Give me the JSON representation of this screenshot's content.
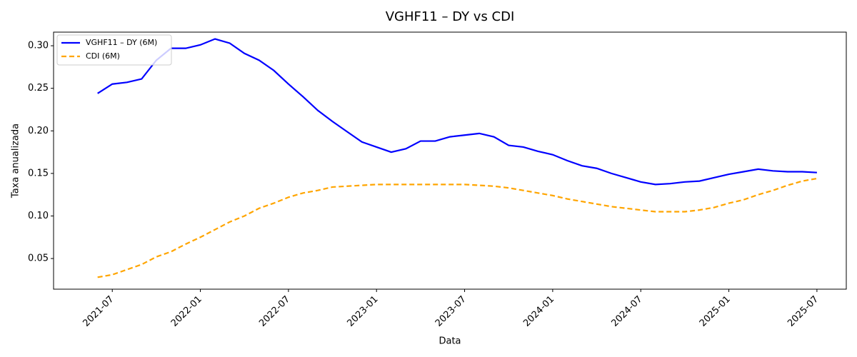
{
  "chart_data": {
    "type": "line",
    "title": "VGHF11 – DY vs CDI",
    "x_label": "Data",
    "y_label": "Taxa anualizada",
    "x": [
      "2021-06",
      "2021-07",
      "2021-08",
      "2021-09",
      "2021-10",
      "2021-11",
      "2021-12",
      "2022-01",
      "2022-02",
      "2022-03",
      "2022-04",
      "2022-05",
      "2022-06",
      "2022-07",
      "2022-08",
      "2022-09",
      "2022-10",
      "2022-11",
      "2022-12",
      "2023-01",
      "2023-02",
      "2023-03",
      "2023-04",
      "2023-05",
      "2023-06",
      "2023-07",
      "2023-08",
      "2023-09",
      "2023-10",
      "2023-11",
      "2023-12",
      "2024-01",
      "2024-02",
      "2024-03",
      "2024-04",
      "2024-05",
      "2024-06",
      "2024-07",
      "2024-08",
      "2024-09",
      "2024-10",
      "2024-11",
      "2024-12",
      "2025-01",
      "2025-02",
      "2025-03",
      "2025-04",
      "2025-05",
      "2025-06",
      "2025-07"
    ],
    "series": [
      {
        "name": "VGHF11 – DY (6M)",
        "color": "#0000ff",
        "dash": "solid",
        "values": [
          0.244,
          0.255,
          0.257,
          0.261,
          0.283,
          0.297,
          0.297,
          0.301,
          0.308,
          0.303,
          0.291,
          0.283,
          0.271,
          0.255,
          0.24,
          0.224,
          0.211,
          0.199,
          0.187,
          0.181,
          0.175,
          0.179,
          0.188,
          0.188,
          0.193,
          0.195,
          0.197,
          0.193,
          0.183,
          0.181,
          0.176,
          0.172,
          0.165,
          0.159,
          0.156,
          0.15,
          0.145,
          0.14,
          0.137,
          0.138,
          0.14,
          0.141,
          0.145,
          0.149,
          0.152,
          0.155,
          0.153,
          0.152,
          0.152,
          0.151
        ]
      },
      {
        "name": "CDI (6M)",
        "color": "#ffa500",
        "dash": "dashed",
        "values": [
          0.028,
          0.031,
          0.037,
          0.043,
          0.052,
          0.058,
          0.067,
          0.075,
          0.084,
          0.093,
          0.1,
          0.109,
          0.115,
          0.122,
          0.127,
          0.13,
          0.134,
          0.135,
          0.136,
          0.137,
          0.137,
          0.137,
          0.137,
          0.137,
          0.137,
          0.137,
          0.136,
          0.135,
          0.133,
          0.13,
          0.127,
          0.124,
          0.12,
          0.117,
          0.114,
          0.111,
          0.109,
          0.107,
          0.105,
          0.105,
          0.105,
          0.107,
          0.11,
          0.115,
          0.119,
          0.125,
          0.13,
          0.136,
          0.141,
          0.144
        ]
      }
    ],
    "xlim": [
      "2021-03",
      "2025-09"
    ],
    "xticks": [
      "2021-07",
      "2022-01",
      "2022-07",
      "2023-01",
      "2023-07",
      "2024-01",
      "2024-07",
      "2025-01",
      "2025-07"
    ],
    "ylim": [
      0.014,
      0.316
    ],
    "yticks": [
      0.05,
      {
        "value": 0.1,
        "label": "0.10"
      },
      0.15,
      {
        "value": 0.2,
        "label": "0.20"
      },
      0.25,
      {
        "value": 0.3,
        "label": "0.30"
      }
    ],
    "legend": "upper left",
    "grid": false
  }
}
